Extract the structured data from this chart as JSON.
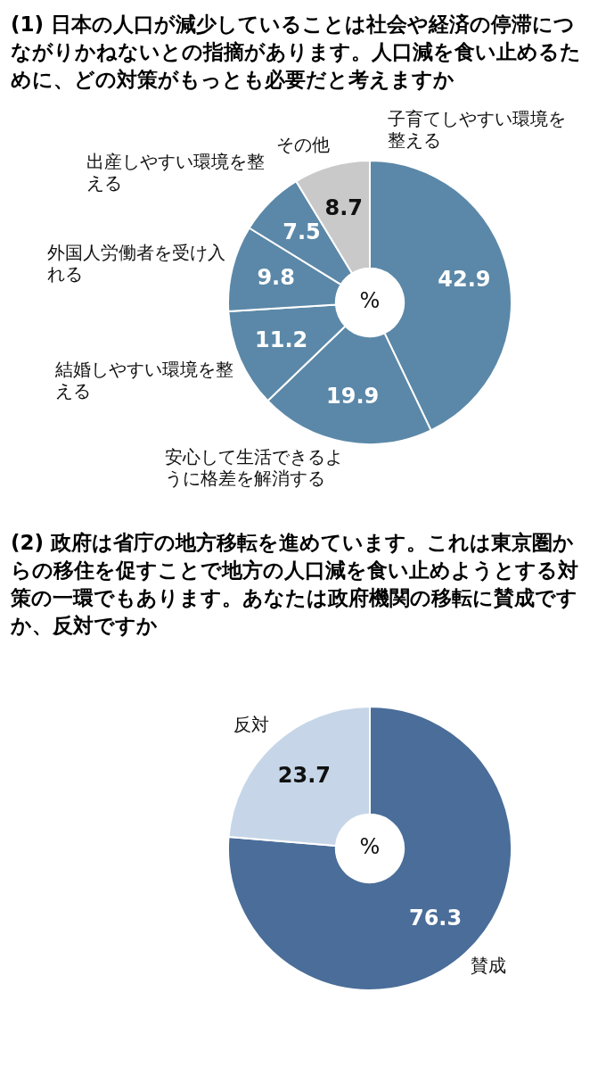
{
  "chart_data": [
    {
      "type": "donut",
      "title": "(1) 日本の人口が減少していることは社会や経済の停滞につながりかねないとの指摘があります。人口減を食い止めるために、どの対策がもっとも必要だと考えますか",
      "categories": [
        "子育てしやすい環境を整える",
        "安心して生活できるように格差を解消する",
        "結婚しやすい環境を整える",
        "外国人労働者を受け入れる",
        "出産しやすい環境を整える",
        "その他"
      ],
      "values": [
        42.9,
        19.9,
        11.2,
        9.8,
        7.5,
        8.7
      ],
      "colors": [
        "#5b88a8",
        "#5b88a8",
        "#5b88a8",
        "#5b88a8",
        "#5b88a8",
        "#c9c9c9"
      ],
      "data_labels": true,
      "annotations": [
        "%"
      ]
    },
    {
      "type": "donut",
      "title": "(2) 政府は省庁の地方移転を進めています。これは東京圏からの移住を促すことで地方の人口減を食い止めようとする対策の一環でもあります。あなたは政府機関の移転に賛成ですか、反対ですか",
      "categories": [
        "賛成",
        "反対"
      ],
      "values": [
        76.3,
        23.7
      ],
      "colors": [
        "#4a6d99",
        "#c6d6e8"
      ],
      "data_labels": true,
      "annotations": [
        "%"
      ]
    }
  ]
}
